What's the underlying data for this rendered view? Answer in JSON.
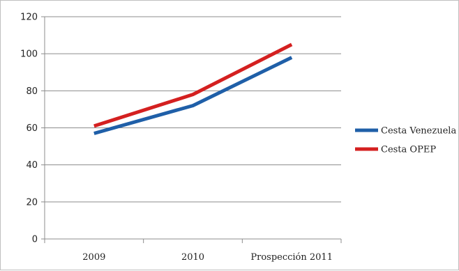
{
  "chart_data": {
    "type": "line",
    "categories": [
      "2009",
      "2010",
      "Prospección 2011"
    ],
    "series": [
      {
        "name": "Cesta Venezuela",
        "color": "#1f5fa8",
        "values": [
          57,
          72,
          98
        ]
      },
      {
        "name": "Cesta OPEP",
        "color": "#d42020",
        "values": [
          61,
          78,
          105
        ]
      }
    ],
    "ylim": [
      0,
      120
    ],
    "yticks": [
      0,
      20,
      40,
      60,
      80,
      100,
      120
    ],
    "grid": true,
    "legend_position": "right"
  }
}
